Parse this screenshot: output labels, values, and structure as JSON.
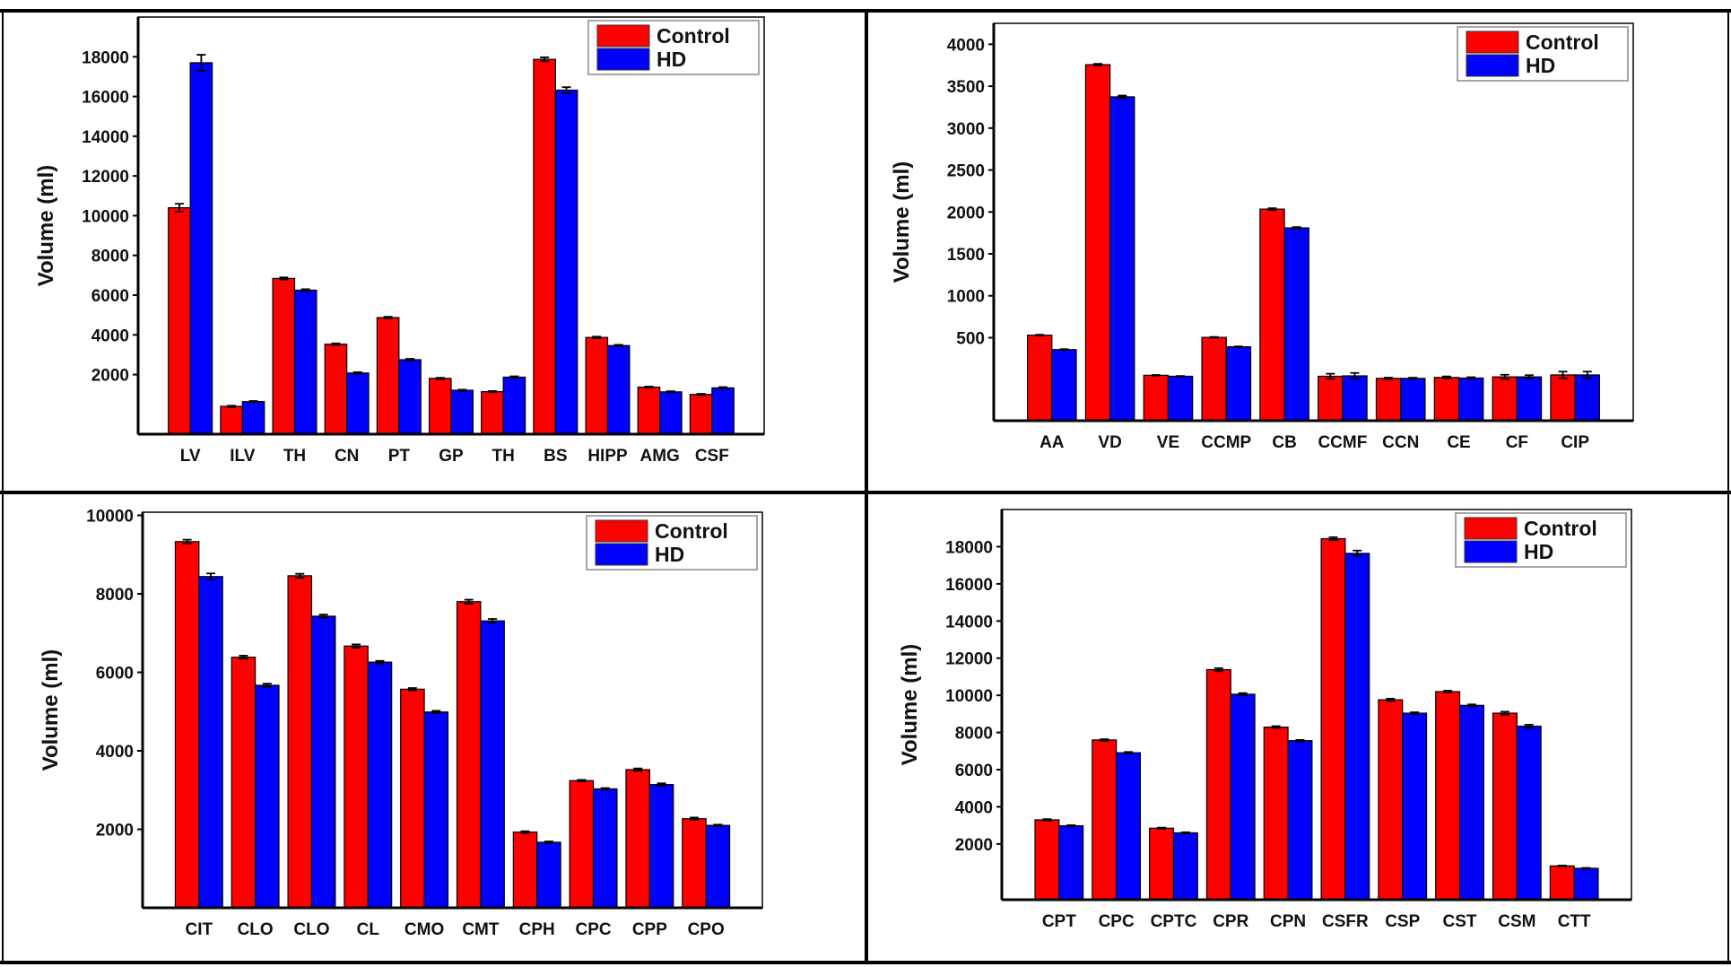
{
  "colors": {
    "control": "#ff0000",
    "hd": "#0000ff",
    "frame": "#000000"
  },
  "chart_data": [
    {
      "type": "bar",
      "title": "",
      "xlabel": "",
      "ylabel": "Volume (ml)",
      "ylim": [
        -1000,
        20000
      ],
      "yticks": [
        2000,
        4000,
        6000,
        8000,
        10000,
        12000,
        14000,
        16000,
        18000
      ],
      "legend": "top-right",
      "categories": [
        "LV",
        "ILV",
        "TH",
        "CN",
        "PT",
        "GP",
        "TH",
        "BS",
        "HIPP",
        "AMG",
        "CSF"
      ],
      "series": [
        {
          "name": "Control",
          "values": [
            10400,
            400,
            6840,
            3530,
            4870,
            1810,
            1140,
            17870,
            3870,
            1370,
            1000
          ],
          "errors": [
            200,
            30,
            50,
            40,
            40,
            30,
            30,
            100,
            40,
            30,
            30
          ]
        },
        {
          "name": "HD",
          "values": [
            17700,
            640,
            6250,
            2080,
            2750,
            1210,
            1870,
            16320,
            3460,
            1130,
            1330
          ],
          "errors": [
            400,
            30,
            50,
            40,
            40,
            30,
            40,
            150,
            40,
            30,
            40
          ]
        }
      ]
    },
    {
      "type": "bar",
      "title": "",
      "xlabel": "",
      "ylabel": "Volume (ml)",
      "ylim": [
        -490,
        4250
      ],
      "yticks": [
        500,
        1000,
        1500,
        2000,
        2500,
        3000,
        3500,
        4000
      ],
      "legend": "top-right",
      "categories": [
        "AA",
        "VD",
        "VE",
        "CCMP",
        "CB",
        "CCMF",
        "CCN",
        "CE",
        "CF",
        "CIP"
      ],
      "series": [
        {
          "name": "Control",
          "values": [
            530,
            3757,
            52,
            504,
            2034,
            40,
            15,
            26,
            33,
            56
          ],
          "errors": [
            5,
            10,
            4,
            5,
            10,
            30,
            8,
            12,
            25,
            40
          ]
        },
        {
          "name": "HD",
          "values": [
            358,
            3373,
            40,
            392,
            1810,
            45,
            15,
            19,
            33,
            56
          ],
          "errors": [
            5,
            15,
            4,
            5,
            10,
            35,
            8,
            10,
            20,
            40
          ]
        }
      ]
    },
    {
      "type": "bar",
      "title": "",
      "xlabel": "",
      "ylabel": "Volume (ml)",
      "ylim": [
        0,
        10080
      ],
      "yticks": [
        2000,
        4000,
        6000,
        8000,
        10000
      ],
      "legend": "top-right",
      "categories": [
        "CIT",
        "CLO",
        "CLO",
        "CL",
        "CMO",
        "CMT",
        "CPH",
        "CPC",
        "CPP",
        "CPO"
      ],
      "series": [
        {
          "name": "Control",
          "values": [
            9330,
            6385,
            8460,
            6670,
            5570,
            7800,
            1930,
            3240,
            3520,
            2270
          ],
          "errors": [
            50,
            40,
            50,
            40,
            30,
            50,
            20,
            20,
            30,
            30
          ]
        },
        {
          "name": "HD",
          "values": [
            8440,
            5670,
            7430,
            6260,
            4990,
            7310,
            1670,
            3030,
            3140,
            2100
          ],
          "errors": [
            80,
            40,
            40,
            30,
            30,
            50,
            20,
            20,
            30,
            20
          ]
        }
      ]
    },
    {
      "type": "bar",
      "title": "",
      "xlabel": "",
      "ylabel": "Volume (ml)",
      "ylim": [
        -1000,
        20000
      ],
      "yticks": [
        2000,
        4000,
        6000,
        8000,
        10000,
        12000,
        14000,
        16000,
        18000
      ],
      "legend": "top-right",
      "categories": [
        "CPT",
        "CPC",
        "CPTC",
        "CPR",
        "CPN",
        "CSFR",
        "CSP",
        "CST",
        "CSM",
        "CTT"
      ],
      "series": [
        {
          "name": "Control",
          "values": [
            3300,
            7600,
            2850,
            11380,
            8290,
            18430,
            9760,
            10200,
            9040,
            820
          ],
          "errors": [
            40,
            40,
            30,
            80,
            50,
            80,
            60,
            50,
            80,
            20
          ]
        },
        {
          "name": "HD",
          "values": [
            2980,
            6910,
            2600,
            10060,
            7560,
            17640,
            9040,
            9460,
            8340,
            690
          ],
          "errors": [
            30,
            40,
            30,
            60,
            40,
            150,
            50,
            50,
            80,
            20
          ]
        }
      ]
    }
  ]
}
